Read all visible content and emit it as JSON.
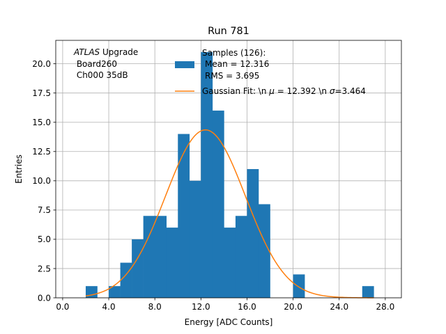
{
  "chart_data": {
    "type": "bar",
    "title": "Run 781",
    "xlabel": "Energy [ADC Counts]",
    "ylabel": "Entries",
    "xlim": [
      -0.6,
      29.4
    ],
    "ylim": [
      0,
      22
    ],
    "grid": true,
    "x_ticks": [
      0,
      4,
      8,
      12,
      16,
      20,
      24,
      28
    ],
    "x_tick_labels": [
      "0.0",
      "4.0",
      "8.0",
      "12.0",
      "16.0",
      "20.0",
      "24.0",
      "28.0"
    ],
    "y_ticks": [
      0,
      2.5,
      5,
      7.5,
      10,
      12.5,
      15,
      17.5,
      20
    ],
    "y_tick_labels": [
      "0.0",
      "2.5",
      "5.0",
      "7.5",
      "10.0",
      "12.5",
      "15.0",
      "17.5",
      "20.0"
    ],
    "bin_width": 1,
    "bins": [
      {
        "x": 2,
        "count": 1
      },
      {
        "x": 4,
        "count": 1
      },
      {
        "x": 5,
        "count": 3
      },
      {
        "x": 6,
        "count": 5
      },
      {
        "x": 7,
        "count": 7
      },
      {
        "x": 8,
        "count": 7
      },
      {
        "x": 9,
        "count": 6
      },
      {
        "x": 10,
        "count": 14
      },
      {
        "x": 11,
        "count": 10
      },
      {
        "x": 12,
        "count": 21
      },
      {
        "x": 13,
        "count": 16
      },
      {
        "x": 14,
        "count": 6
      },
      {
        "x": 15,
        "count": 7
      },
      {
        "x": 16,
        "count": 11
      },
      {
        "x": 17,
        "count": 8
      },
      {
        "x": 20,
        "count": 2
      },
      {
        "x": 26,
        "count": 1
      }
    ],
    "fit": {
      "mu": 12.392,
      "sigma": 3.464,
      "peak": 14.35,
      "x_range": [
        2.0,
        27.0
      ]
    },
    "colors": {
      "bars": "#1f77b4",
      "fit": "#ff7f0e",
      "grid": "#b0b0b0"
    },
    "legend": {
      "placement": "top-right",
      "samples": {
        "line1": "Samples (126):",
        "line2": "Mean = 12.316",
        "line3": "RMS = 3.695"
      },
      "fit_label_prefix": "Gaussian Fit: \\n ",
      "fit_mu_symbol": "μ",
      "fit_mu_value": " = 12.392 \\n ",
      "fit_sigma_symbol": "σ",
      "fit_sigma_value": "=3.464"
    },
    "annotation": {
      "italic": "ATLAS",
      "rest": " Upgrade",
      "line2": " Board260",
      "line3": " Ch000 35dB"
    }
  }
}
